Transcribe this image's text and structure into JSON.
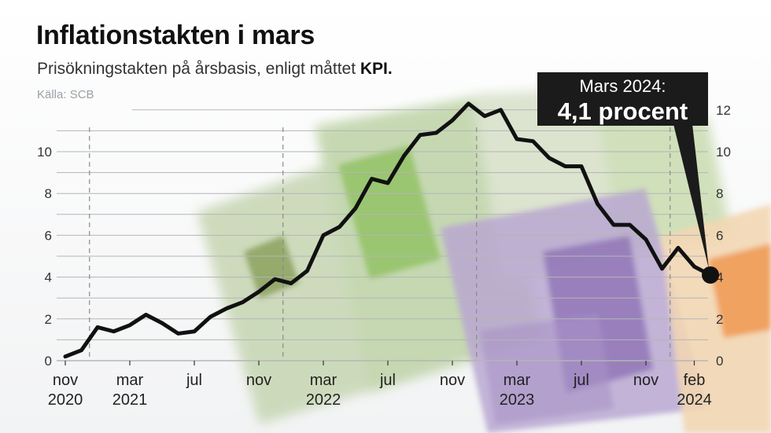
{
  "title": "Inflationstakten i mars",
  "subtitle_text": "Prisökningstakten på årsbasis, enligt måttet ",
  "subtitle_bold": "KPI.",
  "source": "Källa: SCB",
  "annotation": {
    "line1": "Mars 2024:",
    "line2": "4,1 procent"
  },
  "colors": {
    "line": "#111111",
    "grid": "#b5b5b5",
    "annotation_bg": "#1b1b1b"
  },
  "chart_data": {
    "type": "line",
    "x_labels": [
      {
        "index": 0,
        "month": "nov",
        "year": "2020"
      },
      {
        "index": 4,
        "month": "mar",
        "year": "2021"
      },
      {
        "index": 8,
        "month": "jul",
        "year": ""
      },
      {
        "index": 12,
        "month": "nov",
        "year": ""
      },
      {
        "index": 16,
        "month": "mar",
        "year": "2022"
      },
      {
        "index": 20,
        "month": "jul",
        "year": ""
      },
      {
        "index": 24,
        "month": "nov",
        "year": ""
      },
      {
        "index": 28,
        "month": "mar",
        "year": "2023"
      },
      {
        "index": 32,
        "month": "jul",
        "year": ""
      },
      {
        "index": 36,
        "month": "nov",
        "year": ""
      },
      {
        "index": 39,
        "month": "feb",
        "year": "2024"
      }
    ],
    "year_dividers": [
      1.5,
      13.5,
      25.5,
      37.5
    ],
    "values": [
      0.2,
      0.5,
      1.6,
      1.4,
      1.7,
      2.2,
      1.8,
      1.3,
      1.4,
      2.1,
      2.5,
      2.8,
      3.3,
      3.9,
      3.7,
      4.3,
      6.0,
      6.4,
      7.3,
      8.7,
      8.5,
      9.8,
      10.8,
      10.9,
      11.5,
      12.3,
      11.7,
      12.0,
      10.6,
      10.5,
      9.7,
      9.3,
      9.3,
      7.5,
      6.5,
      6.5,
      5.8,
      4.4,
      5.4,
      4.5,
      4.1
    ],
    "y_ticks_left": [
      0,
      2,
      4,
      6,
      8,
      10
    ],
    "y_ticks_right": [
      0,
      2,
      4,
      6,
      8,
      10,
      12
    ],
    "ylim": [
      0,
      12.5
    ]
  }
}
